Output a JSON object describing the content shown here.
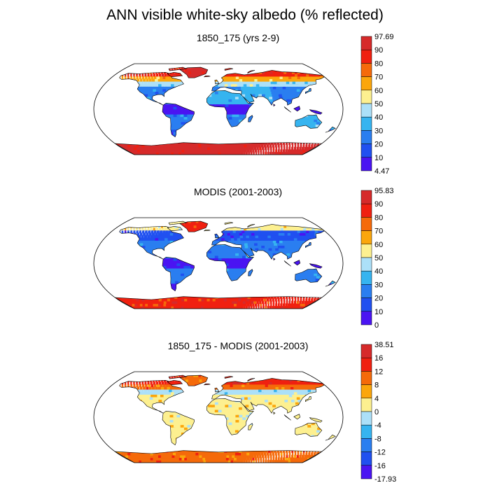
{
  "title": "ANN visible white-sky albedo (% reflected)",
  "chart_data": [
    {
      "type": "heatmap",
      "title": "1850_175 (yrs 2-9)",
      "colorbar": {
        "labels": [
          "97.69",
          "90",
          "80",
          "70",
          "60",
          "50",
          "40",
          "30",
          "20",
          "10",
          "4.47"
        ],
        "colors": [
          "#d62a2a",
          "#f02010",
          "#f56a0a",
          "#fba60c",
          "#fdf090",
          "#ace0f8",
          "#36b4f0",
          "#2a7ef0",
          "#2050f0",
          "#4a14f2"
        ]
      },
      "land_colors": {
        "ice": "#d62a2a",
        "arctic": "#f02010",
        "snow": "#fba60c",
        "boreal": "#ace0f8",
        "default": "#2a7ef0",
        "dry": "#36b4f0",
        "forest": "#2050f0",
        "tropic": "#4a14f2"
      }
    },
    {
      "type": "heatmap",
      "title": "MODIS (2001-2003)",
      "colorbar": {
        "labels": [
          "95.83",
          "90",
          "80",
          "70",
          "60",
          "50",
          "40",
          "30",
          "20",
          "10",
          "0"
        ],
        "colors": [
          "#d62a2a",
          "#f02010",
          "#f56a0a",
          "#fba60c",
          "#fdf090",
          "#ace0f8",
          "#36b4f0",
          "#2a7ef0",
          "#2050f0",
          "#4a14f2"
        ]
      },
      "land_colors": {
        "ice": "#f02010",
        "arctic": "#fdf090",
        "snow": "#2050f0",
        "boreal": "#2050f0",
        "default": "#2a7ef0",
        "dry": "#2a7ef0",
        "forest": "#4a14f2",
        "tropic": "#4a14f2"
      }
    },
    {
      "type": "heatmap",
      "title": "1850_175 - MODIS (2001-2003)",
      "colorbar": {
        "labels": [
          "38.51",
          "16",
          "12",
          "8",
          "4",
          "0",
          "-4",
          "-8",
          "-12",
          "-16",
          "-17.93"
        ],
        "colors": [
          "#d62a2a",
          "#f02010",
          "#f56a0a",
          "#fba60c",
          "#fdf090",
          "#ace0f8",
          "#36b4f0",
          "#2a7ef0",
          "#2050f0",
          "#4a14f2"
        ]
      },
      "land_colors": {
        "ice": "#f56a0a",
        "arctic": "#f02010",
        "snow": "#f56a0a",
        "boreal": "#ace0f8",
        "default": "#fdf090",
        "dry": "#fdf090",
        "forest": "#fdf090",
        "tropic": "#fdf090"
      }
    }
  ]
}
